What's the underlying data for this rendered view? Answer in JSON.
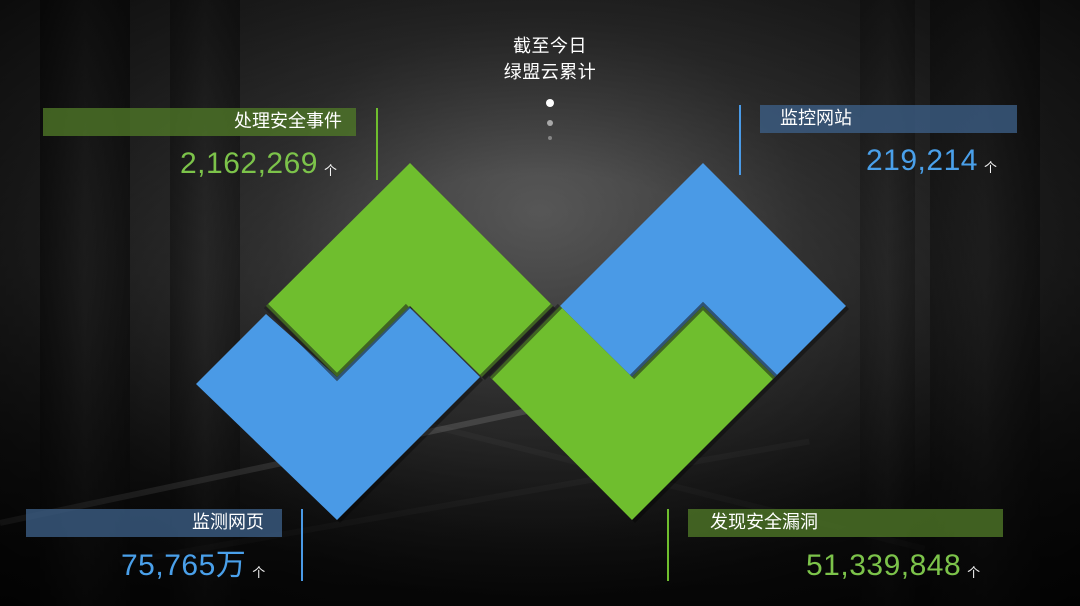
{
  "header": {
    "title_line1": "截至今日",
    "title_line2": "绿盟云累计"
  },
  "stats": [
    {
      "id": "events",
      "label": "处理安全事件",
      "value": "2,162,269",
      "trend_symbol": "个",
      "color": "green"
    },
    {
      "id": "sites",
      "label": "监控网站",
      "value": "219,214",
      "trend_symbol": "个",
      "color": "blue"
    },
    {
      "id": "pages",
      "label": "监测网页",
      "value": "75,765万",
      "trend_symbol": "个",
      "color": "blue"
    },
    {
      "id": "vulns",
      "label": "发现安全漏洞",
      "value": "51,339,848",
      "trend_symbol": "个",
      "color": "green"
    }
  ],
  "theme": {
    "green": "#6fbe2e",
    "blue": "#4a9ae6",
    "label_green_bg": "#507828",
    "label_blue_bg": "#3c5f87",
    "text": "#ffffff"
  },
  "icons": {
    "pagination": "pagination-dots-icon",
    "logo": "nsfocus-w-logo-icon"
  }
}
